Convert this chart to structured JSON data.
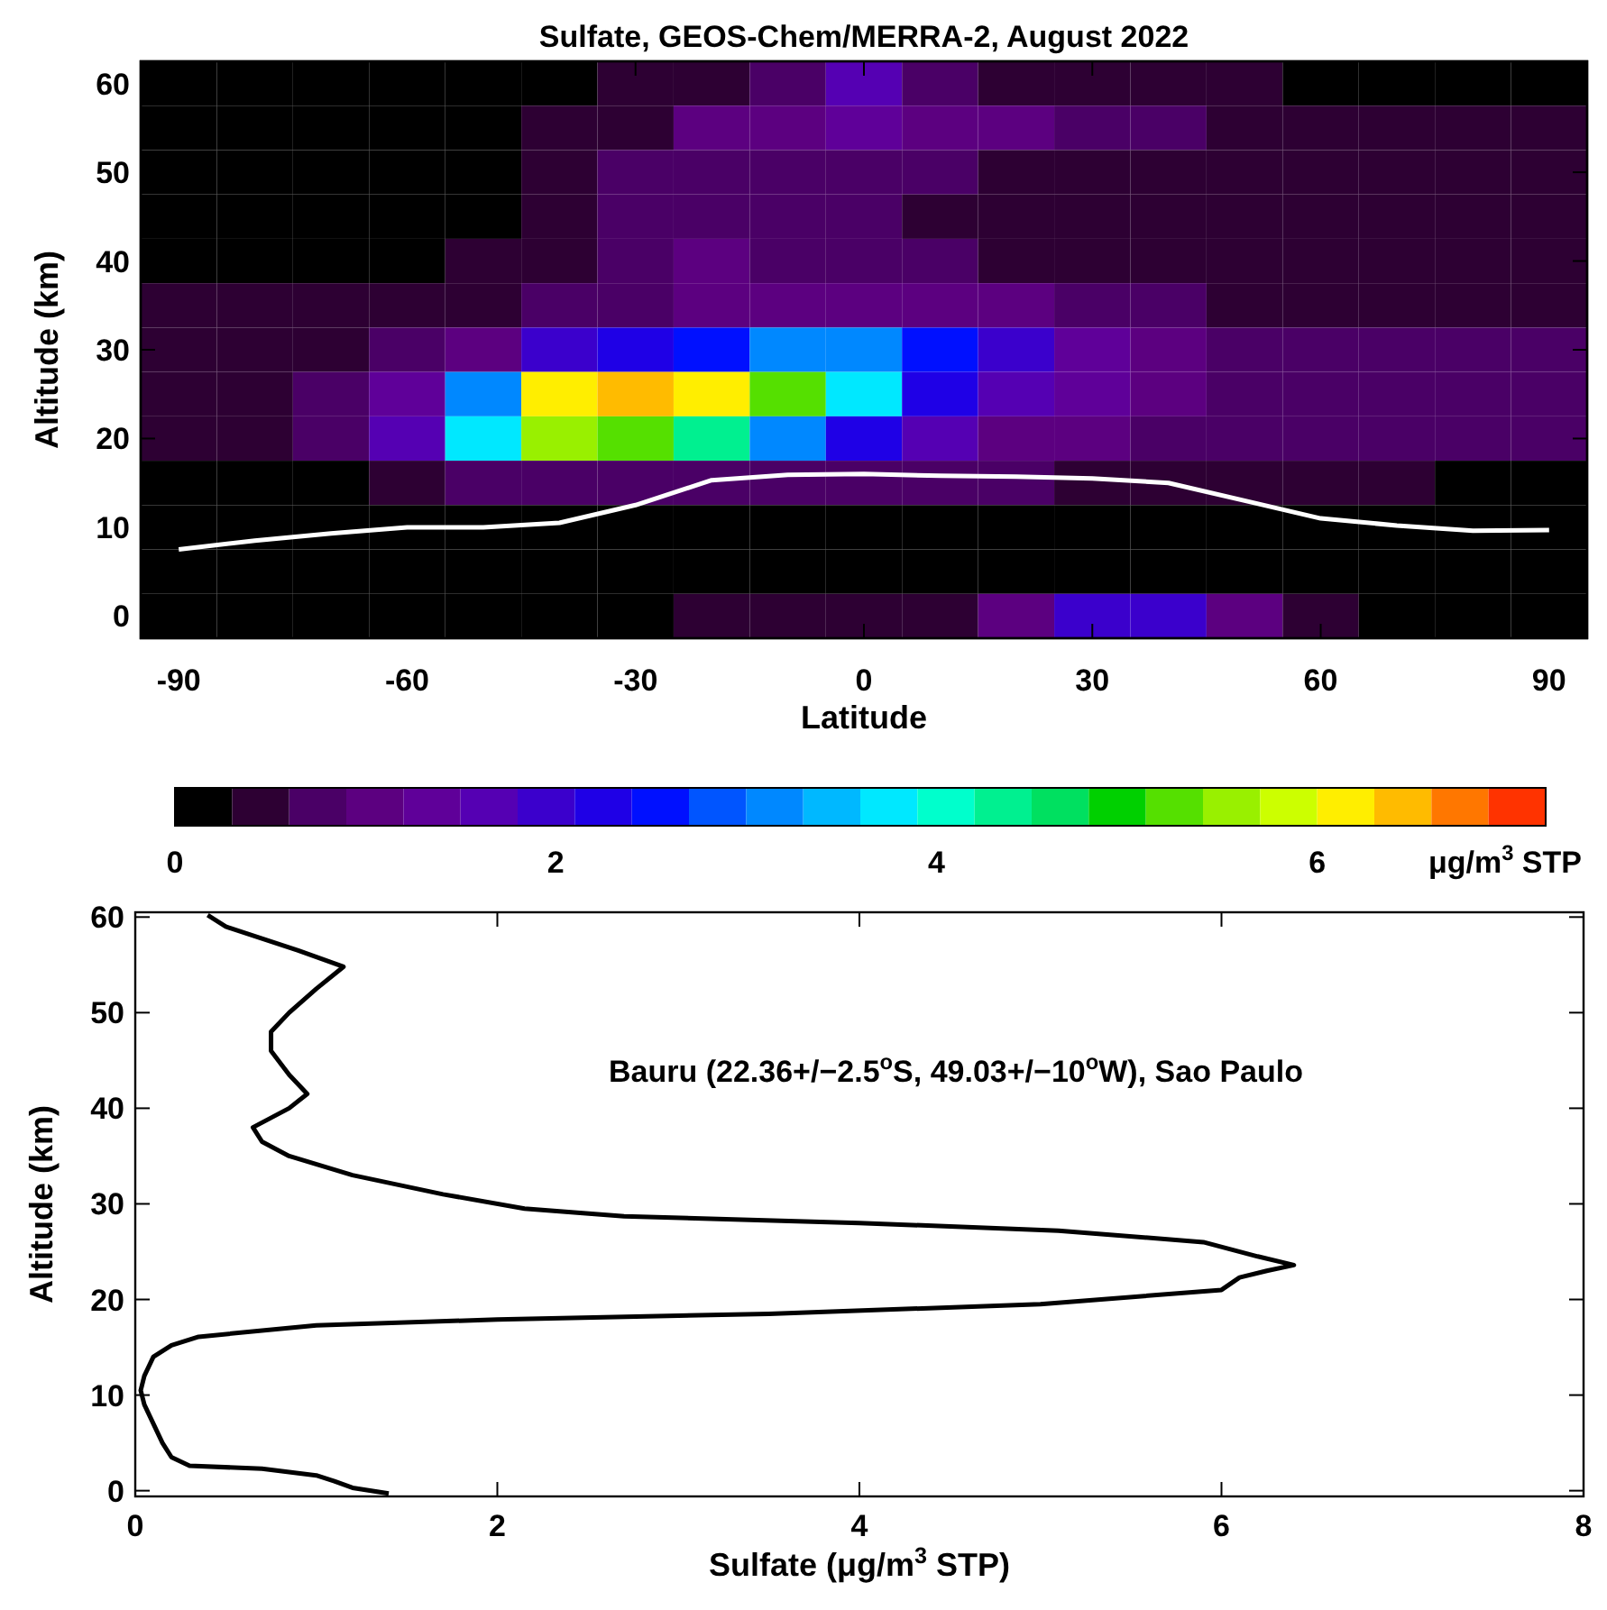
{
  "chart_data": [
    {
      "type": "heatmap",
      "title": "Sulfate, GEOS-Chem/MERRA-2, August 2022",
      "xlabel": "Latitude",
      "ylabel": "Altitude (km)",
      "clabel": "μg/m$^{3}$ STP",
      "categories": [
        null,
        null,
        null,
        null,
        null,
        null,
        null,
        null,
        null,
        null,
        null,
        null,
        null,
        null,
        null,
        null,
        null,
        null,
        null
      ],
      "y_categories": [
        null,
        null,
        null,
        null,
        null,
        null,
        null,
        null,
        null,
        null,
        null,
        null,
        null
      ],
      "clim": [
        0,
        7.2
      ],
      "cticks": [
        0,
        2,
        4,
        6
      ],
      "colors": [
        "#000000",
        "#2d0033",
        "#4a0066",
        "#5c0080",
        "#5f0099",
        "#5500b3",
        "#3b00cc",
        "#1f00e6",
        "#0010ff",
        "#0055ff",
        "#0088ff",
        "#00b8ff",
        "#00e8ff",
        "#00ffcc",
        "#00f090",
        "#00e060",
        "#00d000",
        "#55e000",
        "#99f000",
        "#ccff00",
        "#ffee00",
        "#ffbb00",
        "#ff7700",
        "#ff3300"
      ],
      "cells": [
        [
          0.1,
          0.1,
          0.1,
          0.1,
          0.1,
          0.2,
          0.3,
          0.4,
          0.6,
          1.5,
          0.7,
          0.5,
          0.3,
          0.3,
          0.3,
          0.2,
          0.2,
          0.2,
          0.2
        ],
        [
          0.1,
          0.1,
          0.1,
          0.1,
          0.2,
          0.3,
          0.4,
          0.9,
          1.0,
          1.2,
          1.0,
          0.9,
          0.8,
          0.6,
          0.5,
          0.4,
          0.3,
          0.3,
          0.3
        ],
        [
          0.1,
          0.1,
          0.1,
          0.1,
          0.2,
          0.3,
          0.6,
          0.7,
          0.7,
          0.7,
          0.6,
          0.5,
          0.5,
          0.5,
          0.5,
          0.4,
          0.4,
          0.3,
          0.3
        ],
        [
          0.1,
          0.1,
          0.1,
          0.1,
          0.2,
          0.3,
          0.7,
          0.7,
          0.7,
          0.7,
          0.4,
          0.3,
          0.3,
          0.3,
          0.3,
          0.3,
          0.3,
          0.3,
          0.3
        ],
        [
          0.1,
          0.1,
          0.1,
          0.2,
          0.3,
          0.5,
          0.7,
          1.0,
          0.8,
          0.7,
          0.6,
          0.5,
          0.4,
          0.3,
          0.3,
          0.3,
          0.3,
          0.3,
          0.3
        ],
        [
          0.3,
          0.3,
          0.3,
          0.4,
          0.5,
          0.7,
          0.8,
          0.9,
          1.0,
          1.1,
          1.1,
          0.9,
          0.7,
          0.6,
          0.5,
          0.5,
          0.5,
          0.5,
          0.5
        ],
        [
          0.3,
          0.4,
          0.5,
          0.7,
          1.1,
          1.8,
          2.2,
          2.6,
          3.2,
          3.0,
          2.4,
          1.8,
          1.2,
          0.9,
          0.7,
          0.6,
          0.6,
          0.6,
          0.6
        ],
        [
          0.4,
          0.5,
          0.7,
          1.3,
          3.2,
          6.2,
          6.4,
          6.0,
          5.2,
          3.6,
          2.2,
          1.6,
          1.2,
          0.9,
          0.8,
          0.8,
          0.8,
          0.8,
          0.8
        ],
        [
          0.3,
          0.5,
          0.8,
          1.6,
          3.6,
          5.6,
          5.2,
          4.2,
          3.0,
          2.2,
          1.5,
          1.1,
          0.9,
          0.8,
          0.8,
          0.8,
          0.8,
          0.8,
          0.8
        ],
        [
          0.1,
          0.1,
          0.2,
          0.4,
          0.6,
          0.8,
          0.7,
          0.7,
          0.6,
          0.6,
          0.6,
          0.6,
          0.5,
          0.4,
          0.4,
          0.3,
          0.3,
          0.2,
          0.2
        ],
        [
          0.1,
          0.1,
          0.1,
          0.1,
          0.1,
          0.1,
          0.1,
          0.1,
          0.1,
          0.1,
          0.1,
          0.1,
          0.1,
          0.1,
          0.1,
          0.1,
          0.1,
          0.1,
          0.1
        ],
        [
          0.1,
          0.1,
          0.1,
          0.1,
          0.1,
          0.1,
          0.1,
          0.1,
          0.1,
          0.1,
          0.1,
          0.1,
          0.1,
          0.1,
          0.1,
          0.1,
          0.1,
          0.1,
          0.1
        ],
        [
          0.1,
          0.1,
          0.1,
          0.1,
          0.1,
          0.1,
          0.1,
          0.4,
          0.4,
          0.4,
          0.5,
          1.0,
          1.8,
          1.9,
          1.0,
          0.4,
          0.1,
          0.1,
          0.1
        ]
      ]
    },
    {
      "type": "line",
      "xlim": [
        -95,
        95
      ],
      "ylim": [
        -2.5,
        62.5
      ],
      "xticks": [
        -90,
        -60,
        -30,
        0,
        30,
        60,
        90
      ],
      "yticks": [
        0,
        10,
        20,
        30,
        40,
        50,
        60
      ],
      "series": [
        {
          "color": "#ffffff",
          "x": [
            -90,
            -80,
            -70,
            -60,
            -50,
            -40,
            -30,
            -20,
            -10,
            0,
            10,
            20,
            30,
            40,
            50,
            60,
            70,
            80,
            90
          ],
          "values": [
            7.5,
            8.5,
            9.3,
            10,
            10,
            10.5,
            12.5,
            15.3,
            15.9,
            16,
            15.8,
            15.7,
            15.5,
            15,
            13,
            11,
            10.2,
            9.6,
            9.7
          ]
        }
      ]
    },
    {
      "type": "line",
      "xlabel": "Sulfate (μg/m$^{3}$ STP)",
      "ylabel": "Altitude (km)",
      "annotations": [
        "Bauru (22.36+/−2.5$^{o}$S, 49.03+/−10$^{o}$W), Sao Paulo"
      ],
      "xlim": [
        0,
        8
      ],
      "xticks": [
        0,
        2,
        4,
        6,
        8
      ],
      "ylim": [
        -0.6,
        60.5
      ],
      "yticks": [
        0,
        10,
        20,
        30,
        40,
        50,
        60
      ],
      "series": [
        {
          "color": "#000000",
          "x": [
            1.4,
            1.2,
            1.1,
            1.0,
            0.7,
            0.3,
            0.2,
            0.15,
            0.1,
            0.05,
            0.03,
            0.05,
            0.1,
            0.2,
            0.35,
            1.0,
            2.0,
            3.5,
            5.0,
            6.0,
            6.1,
            6.25,
            6.4,
            6.2,
            5.9,
            5.1,
            4.0,
            2.7,
            2.15,
            1.7,
            1.2,
            0.85,
            0.7,
            0.65,
            0.85,
            0.95,
            0.85,
            0.75,
            0.75,
            0.85,
            1.0,
            1.15,
            0.9,
            0.5,
            0.4
          ],
          "values": [
            -0.3,
            0.3,
            1.0,
            1.6,
            2.3,
            2.6,
            3.5,
            5,
            7,
            9,
            10.5,
            12,
            14,
            15.2,
            16.1,
            17.3,
            17.9,
            18.5,
            19.5,
            21,
            22.3,
            23,
            23.6,
            24.5,
            26,
            27.2,
            28,
            28.7,
            29.5,
            31,
            33,
            35,
            36.5,
            38,
            40,
            41.5,
            43.5,
            46,
            48,
            50,
            52.5,
            54.8,
            56.5,
            59,
            60.2
          ]
        }
      ]
    }
  ]
}
